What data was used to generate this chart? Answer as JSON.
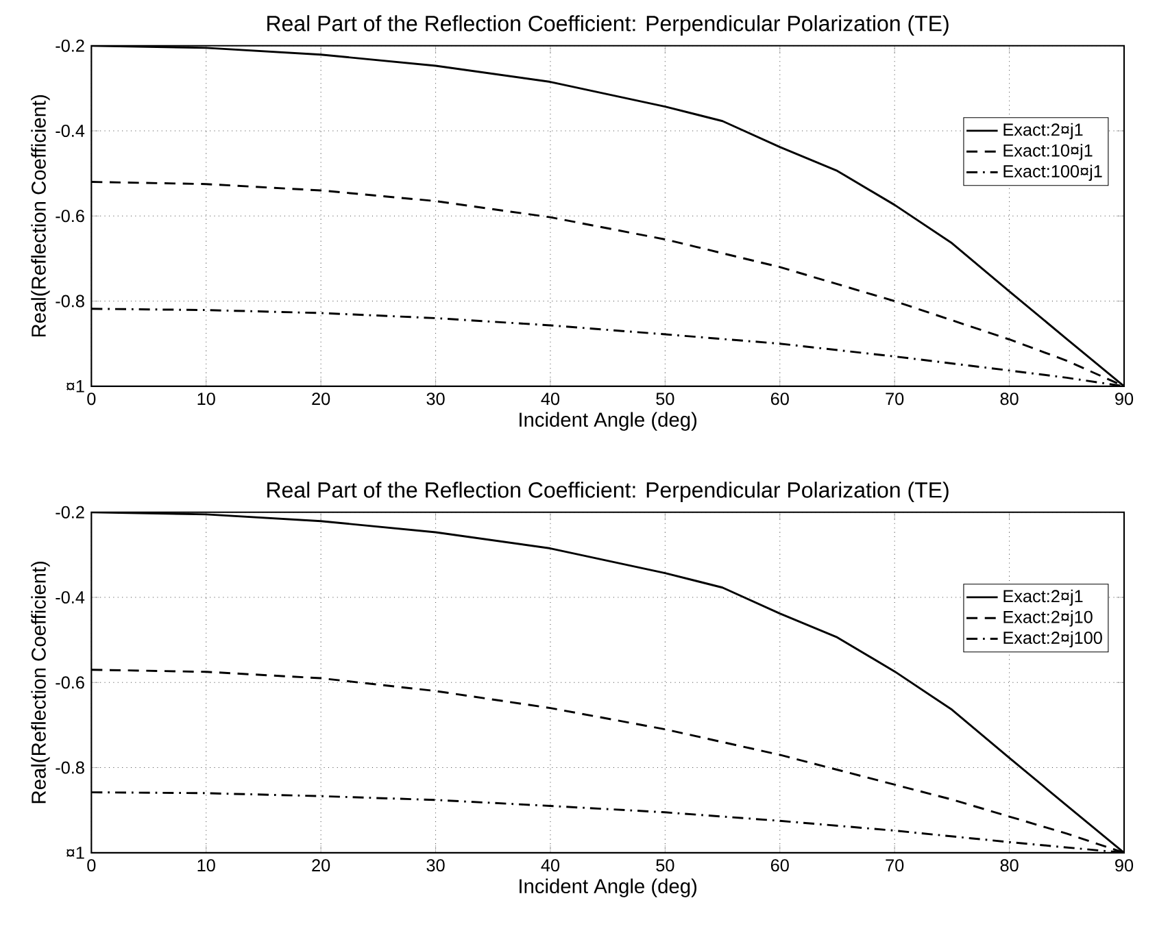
{
  "chart_data": [
    {
      "type": "line",
      "title": "Real Part of the Reflection Coefficient: Perpendicular Polarization (TE)",
      "xlabel": "Incident Angle (deg)",
      "ylabel": "Real(Reflection Coefficient)",
      "xlim": [
        0,
        90
      ],
      "ylim": [
        -1,
        -0.2
      ],
      "xticks": [
        0,
        10,
        20,
        30,
        40,
        50,
        60,
        70,
        80,
        90
      ],
      "yticks": [
        {
          "value": -1,
          "label": "¤1"
        },
        -0.8,
        -0.6,
        -0.4,
        -0.2
      ],
      "grid": true,
      "legend": "top right",
      "series": [
        {
          "name": "Exact:2¤j1",
          "color": "#000000",
          "line_style": "solid",
          "x": [
            0,
            10,
            20,
            30,
            40,
            50,
            55,
            60,
            65,
            70,
            75,
            80,
            85,
            90
          ],
          "values": [
            -0.2,
            -0.205,
            -0.221,
            -0.247,
            -0.285,
            -0.343,
            -0.377,
            -0.438,
            -0.494,
            -0.574,
            -0.664,
            -0.777,
            -0.889,
            -1
          ]
        },
        {
          "name": "Exact:10¤j1",
          "color": "#000000",
          "line_style": "dashed",
          "x": [
            0,
            10,
            20,
            30,
            40,
            50,
            60,
            70,
            75,
            80,
            85,
            90
          ],
          "values": [
            -0.52,
            -0.525,
            -0.54,
            -0.565,
            -0.603,
            -0.655,
            -0.72,
            -0.8,
            -0.845,
            -0.89,
            -0.94,
            -1
          ]
        },
        {
          "name": "Exact:100¤j1",
          "color": "#000000",
          "line_style": "dashdot",
          "x": [
            0,
            10,
            20,
            30,
            40,
            50,
            60,
            70,
            80,
            85,
            90
          ],
          "values": [
            -0.818,
            -0.821,
            -0.828,
            -0.84,
            -0.857,
            -0.878,
            -0.9,
            -0.93,
            -0.963,
            -0.98,
            -1
          ]
        }
      ]
    },
    {
      "type": "line",
      "title": "Real Part of the Reflection Coefficient: Perpendicular Polarization (TE)",
      "xlabel": "Incident Angle (deg)",
      "ylabel": "Real(Reflection Coefficient)",
      "xlim": [
        0,
        90
      ],
      "ylim": [
        -1,
        -0.2
      ],
      "xticks": [
        0,
        10,
        20,
        30,
        40,
        50,
        60,
        70,
        80,
        90
      ],
      "yticks": [
        {
          "value": -1,
          "label": "¤1"
        },
        -0.8,
        -0.6,
        -0.4,
        -0.2
      ],
      "grid": true,
      "legend": "top right",
      "series": [
        {
          "name": "Exact:2¤j1",
          "color": "#000000",
          "line_style": "solid",
          "x": [
            0,
            10,
            20,
            30,
            40,
            50,
            55,
            60,
            65,
            70,
            75,
            80,
            85,
            90
          ],
          "values": [
            -0.2,
            -0.205,
            -0.221,
            -0.247,
            -0.285,
            -0.343,
            -0.377,
            -0.438,
            -0.494,
            -0.574,
            -0.664,
            -0.777,
            -0.889,
            -1
          ]
        },
        {
          "name": "Exact:2¤j10",
          "color": "#000000",
          "line_style": "dashed",
          "x": [
            0,
            10,
            20,
            30,
            40,
            50,
            60,
            70,
            75,
            80,
            85,
            90
          ],
          "values": [
            -0.57,
            -0.575,
            -0.59,
            -0.62,
            -0.66,
            -0.71,
            -0.77,
            -0.84,
            -0.875,
            -0.915,
            -0.955,
            -1
          ]
        },
        {
          "name": "Exact:2¤j100",
          "color": "#000000",
          "line_style": "dashdot",
          "x": [
            0,
            10,
            20,
            30,
            40,
            50,
            60,
            70,
            80,
            90
          ],
          "values": [
            -0.858,
            -0.86,
            -0.867,
            -0.876,
            -0.89,
            -0.905,
            -0.925,
            -0.948,
            -0.975,
            -1
          ]
        }
      ]
    }
  ]
}
